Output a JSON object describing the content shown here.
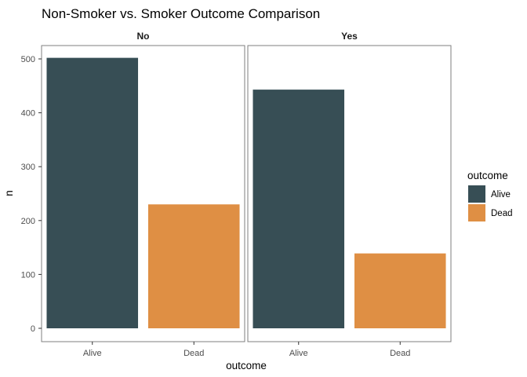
{
  "chart_data": {
    "type": "bar",
    "title": "Non-Smoker vs. Smoker Outcome Comparison",
    "xlabel": "outcome",
    "ylabel": "n",
    "ylim": [
      0,
      520
    ],
    "yticks": [
      0,
      100,
      200,
      300,
      400,
      500
    ],
    "categories": [
      "Alive",
      "Dead"
    ],
    "facets": [
      {
        "label": "No",
        "values": [
          502,
          230
        ]
      },
      {
        "label": "Yes",
        "values": [
          443,
          139
        ]
      }
    ],
    "legend": {
      "title": "outcome",
      "placement": "right",
      "entries": [
        {
          "label": "Alive",
          "color": "#374E55"
        },
        {
          "label": "Dead",
          "color": "#DF8F44"
        }
      ]
    },
    "grid": false
  }
}
